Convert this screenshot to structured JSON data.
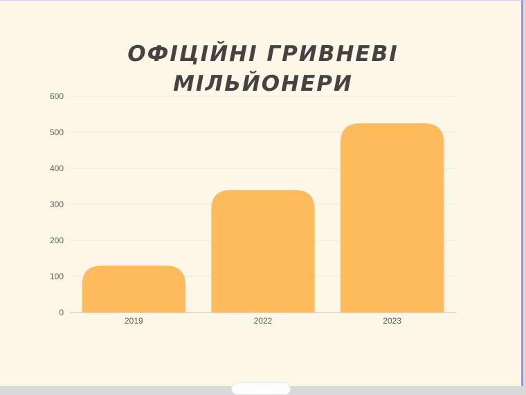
{
  "chart_data": {
    "type": "bar",
    "title": "ОФІЦІЙНІ ГРИВНЕВІ МІЛЬЙОНЕРИ",
    "categories": [
      "2019",
      "2022",
      "2023"
    ],
    "values": [
      130,
      340,
      525
    ],
    "ylim": [
      0,
      600
    ],
    "yticks": [
      0,
      100,
      200,
      300,
      400,
      500,
      600
    ],
    "grid": true,
    "bar_color": "#fdbb5b",
    "grid_color": "#e9e4dc"
  }
}
